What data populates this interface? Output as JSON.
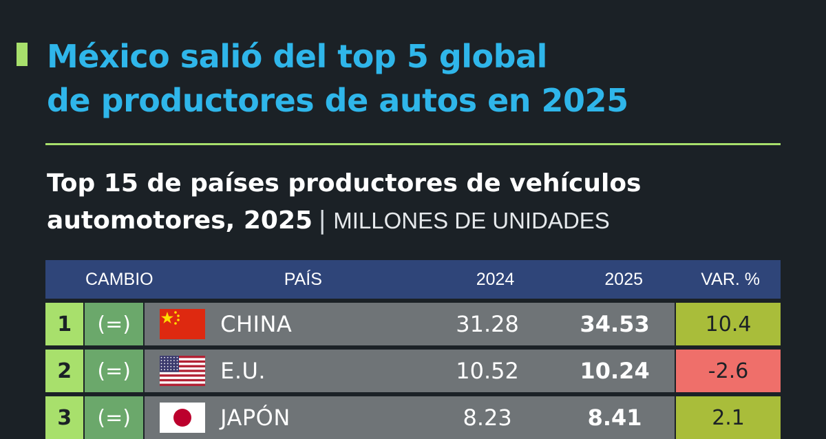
{
  "headline": {
    "line1": "México salió del top 5 global",
    "line2": "de productores de autos en 2025"
  },
  "subtitle": {
    "line1": "Top 15 de países productores de vehículos",
    "line2": "automotores, 2025",
    "separator": "|",
    "unit": "MILLONES DE UNIDADES"
  },
  "colors": {
    "background": "#1b2126",
    "headline": "#2fb6ea",
    "accent": "#a8e06c",
    "header_bg": "#2f4579",
    "row_bg": "#6f7477",
    "change_bg": "#6ba86b",
    "var_positive": "#a9bd3a",
    "var_negative": "#ef6f6a"
  },
  "chart_data": {
    "type": "table",
    "columns": [
      "CAMBIO",
      "PAÍS",
      "2024",
      "2025",
      "VAR. %"
    ],
    "rows": [
      {
        "rank": "1",
        "change": "(=)",
        "country": "CHINA",
        "flag": "china-flag-icon",
        "v2024": "31.28",
        "v2025": "34.53",
        "var": "10.4"
      },
      {
        "rank": "2",
        "change": "(=)",
        "country": "E.U.",
        "flag": "usa-flag-icon",
        "v2024": "10.52",
        "v2025": "10.24",
        "var": "-2.6"
      },
      {
        "rank": "3",
        "change": "(=)",
        "country": "JAPÓN",
        "flag": "japan-flag-icon",
        "v2024": "8.23",
        "v2025": "8.41",
        "var": "2.1"
      }
    ]
  }
}
